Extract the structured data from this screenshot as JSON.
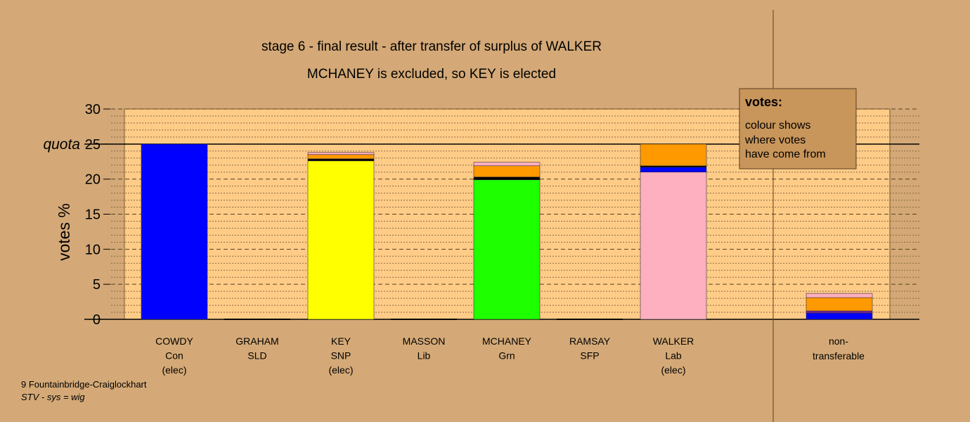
{
  "chart_data": {
    "type": "bar",
    "title": "stage 6 - final result - after transfer of surplus of WALKER",
    "subtitle": "MCHANEY is excluded, so KEY is elected",
    "ylabel": "votes %",
    "ylim": [
      0,
      30
    ],
    "yticks": [
      "0",
      "5",
      "10",
      "15",
      "20",
      "25",
      "30"
    ],
    "quota_label": "quota",
    "quota": 25,
    "grid": "dashed every 5, dotted every 1",
    "categories": [
      {
        "name": "COWDY",
        "party": "Con",
        "status": "(elec)"
      },
      {
        "name": "GRAHAM",
        "party": "SLD",
        "status": ""
      },
      {
        "name": "KEY",
        "party": "SNP",
        "status": "(elec)"
      },
      {
        "name": "MASSON",
        "party": "Lib",
        "status": ""
      },
      {
        "name": "MCHANEY",
        "party": "Grn",
        "status": ""
      },
      {
        "name": "RAMSAY",
        "party": "SFP",
        "status": ""
      },
      {
        "name": "WALKER",
        "party": "Lab",
        "status": "(elec)"
      }
    ],
    "nontransferable_label": [
      "non-",
      "transferable"
    ],
    "stacks": [
      [
        {
          "color": "#0000ff",
          "value": 25.0
        }
      ],
      [],
      [
        {
          "color": "#ffff00",
          "value": 22.6
        },
        {
          "color": "#000000",
          "value": 0.3
        },
        {
          "color": "#ff9900",
          "value": 0.6
        },
        {
          "color": "#ffb0c0",
          "value": 0.3
        }
      ],
      [],
      [
        {
          "color": "#1eff00",
          "value": 19.9
        },
        {
          "color": "#000000",
          "value": 0.4
        },
        {
          "color": "#ff9900",
          "value": 1.6
        },
        {
          "color": "#ffb0c0",
          "value": 0.5
        }
      ],
      [],
      [
        {
          "color": "#ffb0c0",
          "value": 21.0
        },
        {
          "color": "#0000ff",
          "value": 0.7
        },
        {
          "color": "#000000",
          "value": 0.2
        },
        {
          "color": "#ff9900",
          "value": 3.1
        }
      ]
    ],
    "nontransferable_stack": [
      {
        "color": "#0000ff",
        "value": 0.9
      },
      {
        "color": "#7a1fa0",
        "value": 0.3
      },
      {
        "color": "#ff9900",
        "value": 1.9
      },
      {
        "color": "#ffb0c0",
        "value": 0.6
      }
    ],
    "colors": {
      "background": "#d4a977",
      "plot_bg": "#ffcc88",
      "legend_bg": "#c8955a"
    },
    "legend": {
      "title": "votes:",
      "lines": [
        "colour shows",
        "where votes",
        "have come from"
      ]
    },
    "footer": {
      "ward": "9 Fountainbridge-Craiglockhart",
      "system": "STV - sys = wig"
    }
  }
}
